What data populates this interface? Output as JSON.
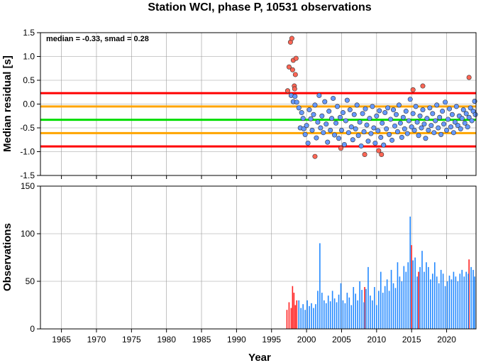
{
  "chart_data": [
    {
      "type": "scatter",
      "title": "Station WCI, phase P, 10531 observations",
      "ylabel": "Median residual [s]",
      "annotation": "median = -0.33, smad = 0.28",
      "xlim": [
        1962,
        2024.2
      ],
      "ylim": [
        -1.5,
        1.5
      ],
      "yticks": [
        "-1.5",
        "-1.0",
        "-0.5",
        "0.0",
        "0.5",
        "1.0",
        "1.5"
      ],
      "grid": true,
      "reference_lines": [
        {
          "y": -0.33,
          "color": "#00dd00"
        },
        {
          "y": -0.05,
          "color": "#ffa500"
        },
        {
          "y": -0.61,
          "color": "#ffa500"
        },
        {
          "y": 0.23,
          "color": "#ff0000"
        },
        {
          "y": -0.89,
          "color": "#ff0000"
        }
      ],
      "series": [
        {
          "color": "#ff6655",
          "points": [
            [
              1997.3,
              0.28
            ],
            [
              1997.5,
              0.78
            ],
            [
              1997.7,
              1.3
            ],
            [
              1997.9,
              1.38
            ],
            [
              1998.0,
              0.72
            ],
            [
              1998.1,
              0.92
            ],
            [
              1998.25,
              0.38
            ],
            [
              1998.3,
              0.32
            ],
            [
              1998.4,
              0.62
            ],
            [
              1998.5,
              0.96
            ],
            [
              2004.9,
              -0.93
            ],
            [
              2008.3,
              -1.06
            ],
            [
              2010.3,
              -0.98
            ],
            [
              2010.7,
              -1.06
            ],
            [
              2015.2,
              0.3
            ],
            [
              2016.6,
              0.38
            ],
            [
              2023.2,
              0.56
            ],
            [
              2001.2,
              -1.1
            ]
          ]
        },
        {
          "color": "#6699ff",
          "points": [
            [
              1997.8,
              0.18
            ],
            [
              1998.35,
              0.16
            ],
            [
              1998.1,
              0.05
            ],
            [
              1998.6,
              0.04
            ],
            [
              1998.9,
              -0.08
            ],
            [
              1999.1,
              -0.5
            ],
            [
              1999.3,
              -0.18
            ],
            [
              1999.5,
              -0.3
            ],
            [
              1999.6,
              -0.52
            ],
            [
              1999.8,
              -0.64
            ],
            [
              2000.0,
              -0.45
            ],
            [
              2000.2,
              -0.82
            ],
            [
              2000.4,
              -0.12
            ],
            [
              2000.6,
              -0.31
            ],
            [
              2000.8,
              -0.55
            ],
            [
              2001.0,
              -0.22
            ],
            [
              2001.2,
              -0.02
            ],
            [
              2001.4,
              -0.71
            ],
            [
              2001.6,
              -0.38
            ],
            [
              2001.8,
              0.18
            ],
            [
              2002.0,
              -0.5
            ],
            [
              2002.2,
              -0.25
            ],
            [
              2002.4,
              -0.6
            ],
            [
              2002.6,
              0.05
            ],
            [
              2002.8,
              -0.42
            ],
            [
              2003.0,
              -0.8
            ],
            [
              2003.2,
              -0.15
            ],
            [
              2003.4,
              -0.55
            ],
            [
              2003.6,
              -0.3
            ],
            [
              2003.8,
              0.12
            ],
            [
              2004.0,
              -0.65
            ],
            [
              2004.2,
              -0.4
            ],
            [
              2004.4,
              -0.05
            ],
            [
              2004.6,
              -0.72
            ],
            [
              2004.8,
              -0.28
            ],
            [
              2005.0,
              -0.55
            ],
            [
              2005.2,
              -0.18
            ],
            [
              2005.4,
              -0.85
            ],
            [
              2005.6,
              -0.35
            ],
            [
              2005.8,
              0.08
            ],
            [
              2006.0,
              -0.6
            ],
            [
              2006.2,
              -0.12
            ],
            [
              2006.4,
              -0.48
            ],
            [
              2006.6,
              -0.75
            ],
            [
              2006.8,
              -0.22
            ],
            [
              2007.0,
              -0.52
            ],
            [
              2007.2,
              -0.02
            ],
            [
              2007.4,
              -0.66
            ],
            [
              2007.6,
              -0.38
            ],
            [
              2007.8,
              -0.88
            ],
            [
              2008.0,
              -0.2
            ],
            [
              2008.2,
              -0.58
            ],
            [
              2008.4,
              -0.1
            ],
            [
              2008.6,
              -0.44
            ],
            [
              2008.8,
              -0.78
            ],
            [
              2009.0,
              -0.3
            ],
            [
              2009.2,
              -0.62
            ],
            [
              2009.4,
              -0.05
            ],
            [
              2009.6,
              -0.5
            ],
            [
              2009.8,
              -0.82
            ],
            [
              2010.0,
              -0.25
            ],
            [
              2010.2,
              -0.56
            ],
            [
              2010.4,
              -0.14
            ],
            [
              2010.6,
              -0.7
            ],
            [
              2010.8,
              -0.4
            ],
            [
              2011.0,
              -0.86
            ],
            [
              2011.2,
              -0.18
            ],
            [
              2011.4,
              -0.52
            ],
            [
              2011.6,
              -0.08
            ],
            [
              2011.8,
              -0.64
            ],
            [
              2012.0,
              -0.32
            ],
            [
              2012.2,
              -0.76
            ],
            [
              2012.4,
              -0.12
            ],
            [
              2012.6,
              -0.46
            ],
            [
              2012.8,
              -0.22
            ],
            [
              2013.0,
              -0.58
            ],
            [
              2013.2,
              -0.02
            ],
            [
              2013.4,
              -0.4
            ],
            [
              2013.6,
              -0.7
            ],
            [
              2013.8,
              -0.28
            ],
            [
              2014.0,
              -0.52
            ],
            [
              2014.2,
              -0.15
            ],
            [
              2014.4,
              -0.62
            ],
            [
              2014.6,
              -0.35
            ],
            [
              2014.8,
              0.1
            ],
            [
              2015.0,
              -0.48
            ],
            [
              2015.2,
              -0.2
            ],
            [
              2015.4,
              -0.55
            ],
            [
              2015.6,
              -0.05
            ],
            [
              2015.8,
              -0.38
            ],
            [
              2016.0,
              -0.66
            ],
            [
              2016.2,
              -0.25
            ],
            [
              2016.4,
              -0.5
            ],
            [
              2016.6,
              -0.12
            ],
            [
              2016.8,
              -0.42
            ],
            [
              2017.0,
              -0.72
            ],
            [
              2017.2,
              -0.3
            ],
            [
              2017.4,
              -0.55
            ],
            [
              2017.6,
              -0.08
            ],
            [
              2017.8,
              -0.45
            ],
            [
              2018.0,
              -0.2
            ],
            [
              2018.2,
              -0.6
            ],
            [
              2018.4,
              -0.35
            ],
            [
              2018.6,
              -0.02
            ],
            [
              2018.8,
              -0.5
            ],
            [
              2019.0,
              -0.28
            ],
            [
              2019.2,
              -0.64
            ],
            [
              2019.4,
              -0.15
            ],
            [
              2019.6,
              -0.42
            ],
            [
              2019.8,
              0.04
            ],
            [
              2020.0,
              -0.55
            ],
            [
              2020.2,
              -0.32
            ],
            [
              2020.4,
              -0.1
            ],
            [
              2020.6,
              -0.48
            ],
            [
              2020.8,
              -0.22
            ],
            [
              2021.0,
              -0.6
            ],
            [
              2021.2,
              -0.38
            ],
            [
              2021.4,
              -0.05
            ],
            [
              2021.6,
              -0.45
            ],
            [
              2021.8,
              -0.25
            ],
            [
              2022.0,
              -0.52
            ],
            [
              2022.2,
              -0.3
            ],
            [
              2022.4,
              -0.12
            ],
            [
              2022.6,
              -0.4
            ],
            [
              2022.8,
              -0.2
            ],
            [
              2023.0,
              -0.48
            ],
            [
              2023.2,
              -0.28
            ],
            [
              2023.4,
              -0.08
            ],
            [
              2023.6,
              -0.35
            ],
            [
              2023.8,
              -0.15
            ],
            [
              2024.0,
              0.06
            ],
            [
              2024.1,
              -0.22
            ]
          ]
        }
      ]
    },
    {
      "type": "bar",
      "ylabel": "Observations",
      "xlabel": "Year",
      "xlim": [
        1962,
        2024.2
      ],
      "ylim": [
        0,
        150
      ],
      "xticks": [
        "1965",
        "1970",
        "1975",
        "1980",
        "1985",
        "1990",
        "1995",
        "2000",
        "2005",
        "2010",
        "2015",
        "2020"
      ],
      "yticks": [
        "0",
        "50",
        "100",
        "150"
      ],
      "grid": true,
      "series": [
        {
          "color": "#ff2222",
          "bars": [
            [
              1997.2,
              20
            ],
            [
              1997.5,
              28
            ],
            [
              1997.8,
              22
            ],
            [
              1998.0,
              45
            ],
            [
              1998.2,
              38
            ],
            [
              1998.4,
              25
            ],
            [
              1998.6,
              30
            ],
            [
              2008.3,
              44
            ],
            [
              2015.0,
              88
            ],
            [
              2016.0,
              60
            ],
            [
              2023.2,
              73
            ]
          ]
        },
        {
          "color": "#2288ff",
          "bars": [
            [
              1998.9,
              30
            ],
            [
              1999.2,
              22
            ],
            [
              1999.5,
              26
            ],
            [
              1999.8,
              20
            ],
            [
              2000.1,
              30
            ],
            [
              2000.4,
              24
            ],
            [
              2000.7,
              27
            ],
            [
              2001.0,
              22
            ],
            [
              2001.3,
              26
            ],
            [
              2001.6,
              40
            ],
            [
              2001.9,
              90
            ],
            [
              2002.2,
              38
            ],
            [
              2002.5,
              30
            ],
            [
              2002.8,
              27
            ],
            [
              2003.1,
              35
            ],
            [
              2003.4,
              29
            ],
            [
              2003.7,
              40
            ],
            [
              2004.0,
              32
            ],
            [
              2004.3,
              28
            ],
            [
              2004.6,
              36
            ],
            [
              2004.9,
              48
            ],
            [
              2005.2,
              30
            ],
            [
              2005.5,
              27
            ],
            [
              2005.8,
              38
            ],
            [
              2006.1,
              33
            ],
            [
              2006.4,
              25
            ],
            [
              2006.7,
              44
            ],
            [
              2007.0,
              37
            ],
            [
              2007.3,
              30
            ],
            [
              2007.6,
              50
            ],
            [
              2007.9,
              41
            ],
            [
              2008.2,
              28
            ],
            [
              2008.5,
              42
            ],
            [
              2008.8,
              65
            ],
            [
              2009.1,
              35
            ],
            [
              2009.4,
              30
            ],
            [
              2009.7,
              44
            ],
            [
              2010.0,
              25
            ],
            [
              2010.3,
              40
            ],
            [
              2010.6,
              60
            ],
            [
              2010.9,
              38
            ],
            [
              2011.2,
              45
            ],
            [
              2011.5,
              52
            ],
            [
              2011.8,
              40
            ],
            [
              2012.1,
              62
            ],
            [
              2012.4,
              48
            ],
            [
              2012.7,
              43
            ],
            [
              2013.0,
              70
            ],
            [
              2013.3,
              55
            ],
            [
              2013.6,
              50
            ],
            [
              2013.9,
              66
            ],
            [
              2014.2,
              60
            ],
            [
              2014.5,
              70
            ],
            [
              2014.8,
              118
            ],
            [
              2015.2,
              72
            ],
            [
              2015.5,
              75
            ],
            [
              2015.8,
              55
            ],
            [
              2016.2,
              65
            ],
            [
              2016.5,
              82
            ],
            [
              2016.8,
              60
            ],
            [
              2017.1,
              70
            ],
            [
              2017.4,
              65
            ],
            [
              2017.7,
              52
            ],
            [
              2018.0,
              58
            ],
            [
              2018.3,
              70
            ],
            [
              2018.6,
              55
            ],
            [
              2018.9,
              48
            ],
            [
              2019.2,
              62
            ],
            [
              2019.5,
              58
            ],
            [
              2019.8,
              45
            ],
            [
              2020.1,
              50
            ],
            [
              2020.4,
              56
            ],
            [
              2020.7,
              52
            ],
            [
              2021.0,
              60
            ],
            [
              2021.3,
              55
            ],
            [
              2021.6,
              50
            ],
            [
              2021.9,
              58
            ],
            [
              2022.2,
              62
            ],
            [
              2022.5,
              55
            ],
            [
              2022.8,
              60
            ],
            [
              2023.1,
              58
            ],
            [
              2023.5,
              65
            ],
            [
              2023.8,
              62
            ],
            [
              2024.0,
              55
            ]
          ]
        }
      ]
    }
  ]
}
